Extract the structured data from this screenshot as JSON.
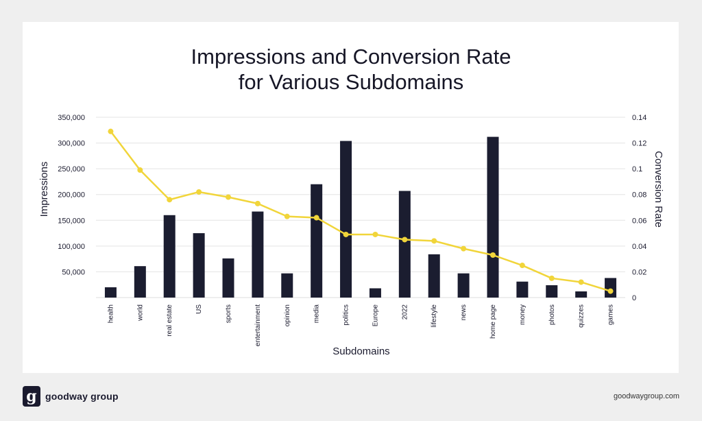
{
  "chart_data": {
    "type": "bar",
    "title_lines": [
      "Impressions and Conversion Rate",
      "for Various Subdomains"
    ],
    "xlabel": "Subdomains",
    "ylabel": "Impressions",
    "ylabel_right": "Conversion Rate",
    "categories": [
      "health",
      "world",
      "real estate",
      "US",
      "sports",
      "entertainment",
      "opinion",
      "media",
      "politics",
      "Europe",
      "2022",
      "lifestyle",
      "news",
      "home page",
      "money",
      "photos",
      "quizzes",
      "games"
    ],
    "series": [
      {
        "type": "bar",
        "axis": "left",
        "color": "#1b1d30",
        "values": [
          20000,
          61000,
          160000,
          125000,
          76000,
          167000,
          47000,
          220000,
          304000,
          18000,
          207000,
          84000,
          47000,
          312000,
          31000,
          24000,
          12000,
          38000
        ]
      },
      {
        "type": "line",
        "axis": "right",
        "color": "#f1d53a",
        "values": [
          0.129,
          0.099,
          0.076,
          0.082,
          0.078,
          0.073,
          0.063,
          0.062,
          0.049,
          0.049,
          0.045,
          0.044,
          0.038,
          0.033,
          0.025,
          0.015,
          0.012,
          0.005
        ]
      }
    ],
    "ylim": [
      0,
      350000
    ],
    "y_ticks": [
      50000,
      100000,
      150000,
      200000,
      250000,
      300000,
      350000
    ],
    "y_tick_labels": [
      "50,000",
      "100,000",
      "150,000",
      "200,000",
      "250,000",
      "300,000",
      "350,000"
    ],
    "ylim_right": [
      0,
      0.14
    ],
    "y2_ticks": [
      0,
      0.02,
      0.04,
      0.06,
      0.08,
      0.1,
      0.12,
      0.14
    ],
    "y2_tick_labels": [
      "0",
      "0.02",
      "0.04",
      "0.06",
      "0.08",
      "0.1",
      "0.12",
      "0.14"
    ],
    "grid": true,
    "legend": "none"
  },
  "footer": {
    "logo_glyph": "g",
    "brand": "goodway group",
    "url": "goodwaygroup.com"
  }
}
